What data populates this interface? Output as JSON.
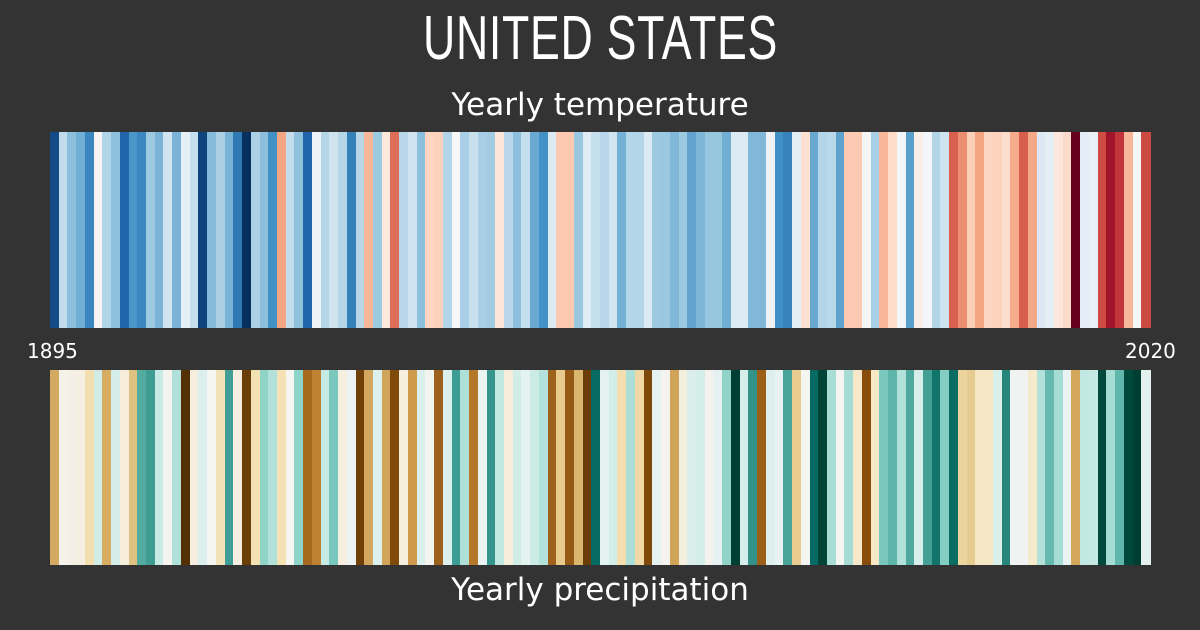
{
  "title": "UNITED STATES",
  "axis": {
    "start_label": "1895",
    "end_label": "2020"
  },
  "background": "#333333",
  "chart_data": [
    {
      "type": "heatmap",
      "title": "Yearly temperature",
      "x_range": [
        1895,
        2020
      ],
      "colormap": "blue (cool) to red (warm)",
      "colors": [
        "#134b87",
        "#c2dcec",
        "#8bbfdc",
        "#71aed5",
        "#3a87c0",
        "#f8f3f0",
        "#b0d4e8",
        "#8dc0dd",
        "#2166ac",
        "#4a96c8",
        "#3b88c0",
        "#9ecae1",
        "#7ab3d6",
        "#d1e5f0",
        "#7ab3d6",
        "#e5eff6",
        "#c6dfee",
        "#0f437e",
        "#85bbda",
        "#abd0e6",
        "#79b3d6",
        "#2f79b5",
        "#08305e",
        "#acd1e6",
        "#8dbfdc",
        "#4291c6",
        "#f4a582",
        "#c3ddec",
        "#90c2de",
        "#2166ac",
        "#eef3f7",
        "#b5d6e9",
        "#d0e4f0",
        "#b5d6e9",
        "#3480b9",
        "#b7d7e9",
        "#f9b799",
        "#9ccae1",
        "#fde8dc",
        "#df6e58",
        "#b7d7e9",
        "#d0e4f0",
        "#8bbfdc",
        "#fdd5c0",
        "#fdd2bd",
        "#b3d5e8",
        "#f7f7f7",
        "#a8cfe5",
        "#c8e0ee",
        "#a8cfe5",
        "#a3cce3",
        "#fde5d9",
        "#b9d7ea",
        "#8ebfdc",
        "#c4deed",
        "#6aaad2",
        "#4391c6",
        "#dbeaf3",
        "#fcc8b0",
        "#fcc8b0",
        "#9ac8e0",
        "#dfecf4",
        "#c6dfee",
        "#b9d7ea",
        "#d1e5f0",
        "#74b1d5",
        "#b3d6e8",
        "#b3d6e8",
        "#dbeaf3",
        "#9ecae1",
        "#9ac8e0",
        "#81b8d9",
        "#9ecae1",
        "#62a4cf",
        "#7eb6d8",
        "#97c6df",
        "#97c6df",
        "#71aed4",
        "#dbeaf3",
        "#dbeaf3",
        "#81b8d9",
        "#81b8d9",
        "#f0f3f5",
        "#4190c5",
        "#3682bb",
        "#e3eef5",
        "#fde0d2",
        "#68a8d1",
        "#b3d5e8",
        "#b9d8ea",
        "#5ea2cd",
        "#fccab3",
        "#fccab3",
        "#f5f5f5",
        "#a8cfe5",
        "#f9b799",
        "#fddcca",
        "#f2f6f9",
        "#59a1cb",
        "#faeee8",
        "#f4f7f9",
        "#b2d5e8",
        "#cde3ef",
        "#d9604f",
        "#ec8f70",
        "#fccfb9",
        "#f5a582",
        "#fdd6c3",
        "#fdd3be",
        "#fdddcd",
        "#f7ad8c",
        "#d95f4d",
        "#f4a989",
        "#dae9f3",
        "#e3eef5",
        "#fde6db",
        "#fddbca",
        "#67001f",
        "#e5eef6",
        "#e9f0f6",
        "#cd4b43",
        "#a0142c",
        "#c0343a",
        "#f8b799",
        "#f6f6f6",
        "#cb4a42"
      ]
    },
    {
      "type": "heatmap",
      "title": "Yearly precipitation",
      "x_range": [
        1895,
        2020
      ],
      "colormap": "brown (dry) to teal (wet)",
      "colors": [
        "#d4aa62",
        "#f5f2ea",
        "#f4f0e6",
        "#f4efe1",
        "#f2deae",
        "#d1ece6",
        "#d6ad62",
        "#d4ede8",
        "#f6eedb",
        "#dfc280",
        "#54ab9f",
        "#3e9c92",
        "#c7eae4",
        "#f5f3ed",
        "#b0e0d9",
        "#543005",
        "#f6efe0",
        "#dcefec",
        "#f5f5f1",
        "#f2e2b7",
        "#3f9e95",
        "#f6efe1",
        "#6b3d08",
        "#f4e1b2",
        "#90d4c8",
        "#b2e1d9",
        "#f4e2b5",
        "#f5f5f1",
        "#8ed4c8",
        "#a66a1f",
        "#bf8132",
        "#c6eae4",
        "#7ac8bd",
        "#f6efe0",
        "#edf2f2",
        "#714008",
        "#d3a85e",
        "#dcf0ed",
        "#d1a559",
        "#804a09",
        "#f6efdf",
        "#cf9a4c",
        "#dbefed",
        "#f4f4ef",
        "#9d611d",
        "#dcf0ed",
        "#3d9c93",
        "#aee0d8",
        "#b5772a",
        "#e9f3f2",
        "#33958b",
        "#c0e7e0",
        "#f6eedb",
        "#d2ede8",
        "#e4f2f0",
        "#cbebe5",
        "#b2e2db",
        "#9e621c",
        "#e8cb8c",
        "#975a15",
        "#dab66f",
        "#693c08",
        "#076a62",
        "#e4f2f1",
        "#d3ede8",
        "#f2deae",
        "#addfd8",
        "#f0d9a4",
        "#7f490b",
        "#e6f2f2",
        "#f4f3ee",
        "#d1a559",
        "#f5efe0",
        "#dceeec",
        "#d3ede8",
        "#f4f2ec",
        "#e5f2f1",
        "#91d3c8",
        "#003f33",
        "#d6eee9",
        "#339389",
        "#9c5f18",
        "#dfefed",
        "#e8f2f2",
        "#48a399",
        "#e8cc90",
        "#f4f4f0",
        "#066b62",
        "#004437",
        "#a7ddd5",
        "#f4f4f2",
        "#a6dcd4",
        "#f6e8c8",
        "#894d0b",
        "#f6e7c5",
        "#7ac8bd",
        "#5eb5aa",
        "#b2e1d9",
        "#50a99e",
        "#d7eeea",
        "#449f95",
        "#11756c",
        "#84cdc2",
        "#0a6d64",
        "#ecd49e",
        "#e6cc8e",
        "#f6e7c4",
        "#f6e7c4",
        "#d8efea",
        "#26867c",
        "#f1f3f3",
        "#f1f3f3",
        "#f6eacd",
        "#b2e1d9",
        "#66b9ae",
        "#a5dcd3",
        "#e9f3f2",
        "#d4a659",
        "#c0e7e1",
        "#c4e9e3",
        "#00493c",
        "#a5dcd3",
        "#60b7ac",
        "#004a3d",
        "#003e32",
        "#e3f2ef"
      ]
    }
  ]
}
